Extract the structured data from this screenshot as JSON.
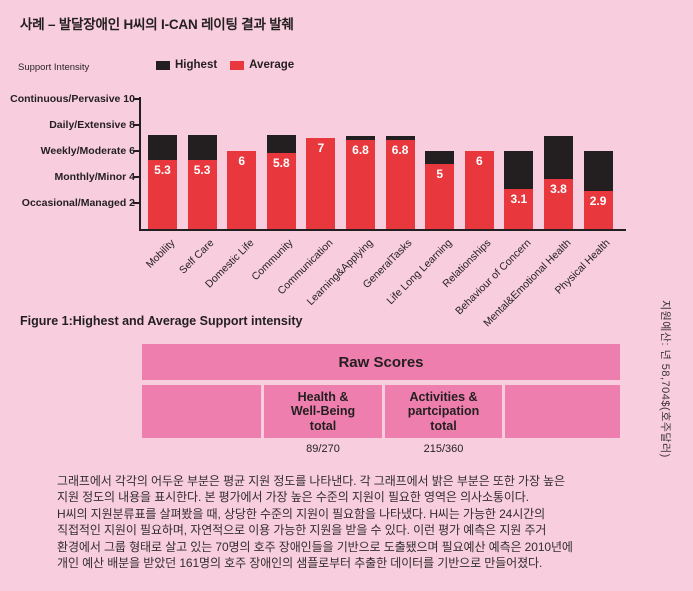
{
  "page_title": "사례 – 발달장애인 H씨의 I-CAN 레이팅 결과 발췌",
  "chart_data": {
    "type": "bar",
    "stacked": true,
    "axis_title": "Support Intensity",
    "legend_position": "top",
    "grid": false,
    "ylim": [
      0,
      10.5
    ],
    "legend": [
      {
        "label": "Highest",
        "color": "#231f20"
      },
      {
        "label": "Average",
        "color": "#e8383d"
      }
    ],
    "categories": [
      "Mobility",
      "Self Care",
      "Domestic Life",
      "Community",
      "Communication",
      "Learning&Applying",
      "GeneralTasks",
      "Life Long Learning",
      "Relationships",
      "Behaviour of Concern",
      "Mental&Emotional Health",
      "Physical Health"
    ],
    "series": [
      {
        "name": "Average",
        "color": "#e8383d",
        "values": [
          5.3,
          5.3,
          6,
          5.8,
          7,
          6.8,
          6.8,
          5,
          6,
          3.1,
          3.8,
          2.9
        ]
      },
      {
        "name": "Highest",
        "color": "#231f20",
        "values": [
          7.2,
          7.2,
          6,
          7.2,
          7,
          7.1,
          7.1,
          6,
          6,
          6,
          7.1,
          6
        ]
      }
    ],
    "bar_labels": [
      "5.3",
      "5.3",
      "6",
      "5.8",
      "7",
      "6.8",
      "6.8",
      "5",
      "6",
      "3.1",
      "3.8",
      "2.9"
    ],
    "y_ticks": [
      {
        "label": "Continuous/Pervasive 10",
        "value": 10
      },
      {
        "label": "Daily/Extensive 8",
        "value": 8
      },
      {
        "label": "Weekly/Moderate 6",
        "value": 6
      },
      {
        "label": "Monthly/Minor 4",
        "value": 4
      },
      {
        "label": "Occasional/Managed 2",
        "value": 2
      }
    ]
  },
  "figure_caption": "Figure 1:Highest and Average Support intensity",
  "raw_scores_table": {
    "title": "Raw Scores",
    "columns": [
      "",
      "Health &\nWell-Being\ntotal",
      "Activities &\npartcipation\ntotal",
      ""
    ],
    "values": [
      "",
      "89/270",
      "215/360",
      ""
    ]
  },
  "side_note": "지원예산: 년 58,704$(호주달러)",
  "body_paragraph": "그래프에서 각각의 어두운 부분은 평균 지원 정도를 나타낸다. 각 그래프에서 밝은 부분은 또한 가장 높은\n지원 정도의 내용을 표시한다. 본 평가에서 가장 높은 수준의 지원이 필요한 영역은 의사소통이다.\nH씨의 지원분류표를 살펴봤을 때, 상당한 수준의 지원이 필요함을 나타냈다. H씨는 가능한 24시간의\n직접적인 지원이 필요하며, 자연적으로 이용 가능한 지원을 받을 수 있다. 이런 평가 예측은 지원 주거\n환경에서 그룹 형태로 살고 있는 70명의 호주 장애인들을 기반으로 도출됐으며 필요예산 예측은 2010년에\n개인 예산 배분을 받았던 161명의 호주 장애인의 샘플로부터 추출한 데이터를 기반으로 만들어졌다.",
  "colors": {
    "page_bg": "#f8cddd",
    "bar_red": "#e8383d",
    "bar_black": "#231f20",
    "table_pink": "#ee7ead"
  }
}
